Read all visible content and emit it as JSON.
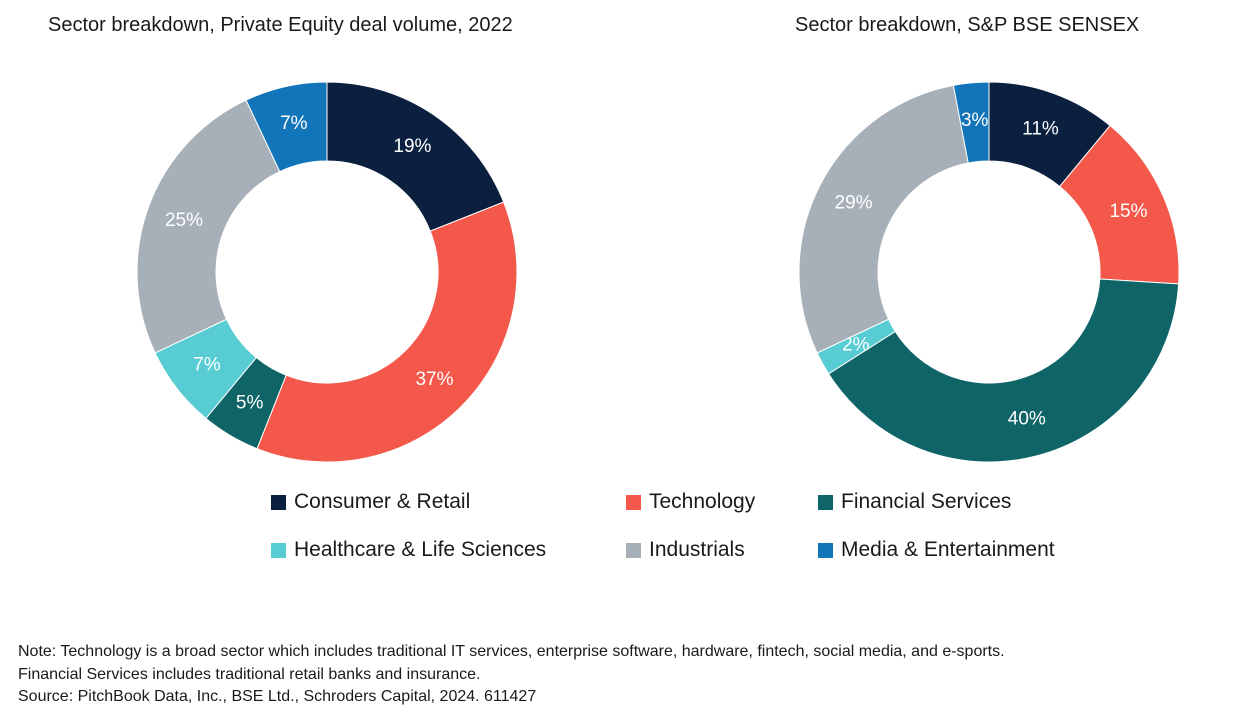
{
  "chart_data": [
    {
      "type": "pie",
      "title": "Sector breakdown, Private Equity deal volume, 2022",
      "slices": [
        {
          "label": "Consumer & Retail",
          "value": 19,
          "display": "19%"
        },
        {
          "label": "Technology",
          "value": 37,
          "display": "37%"
        },
        {
          "label": "Financial Services",
          "value": 5,
          "display": "5%"
        },
        {
          "label": "Healthcare & Life Sciences",
          "value": 7,
          "display": "7%"
        },
        {
          "label": "Industrials",
          "value": 25,
          "display": "25%"
        },
        {
          "label": "Media & Entertainment",
          "value": 7,
          "display": "7%"
        }
      ]
    },
    {
      "type": "pie",
      "title": "Sector breakdown, S&P BSE SENSEX",
      "slices": [
        {
          "label": "Consumer & Retail",
          "value": 11,
          "display": "11%"
        },
        {
          "label": "Technology",
          "value": 15,
          "display": "15%"
        },
        {
          "label": "Financial Services",
          "value": 40,
          "display": "40%"
        },
        {
          "label": "Healthcare & Life Sciences",
          "value": 2,
          "display": "2%"
        },
        {
          "label": "Industrials",
          "value": 29,
          "display": "29%"
        },
        {
          "label": "Media & Entertainment",
          "value": 3,
          "display": "3%"
        }
      ]
    }
  ],
  "legend": [
    {
      "label": "Consumer & Retail",
      "color": "#0b1f3f"
    },
    {
      "label": "Technology",
      "color": "#f4584a"
    },
    {
      "label": "Financial Services",
      "color": "#0f6468"
    },
    {
      "label": "Healthcare & Life Sciences",
      "color": "#57ccd2"
    },
    {
      "label": "Industrials",
      "color": "#a7afb8"
    },
    {
      "label": "Media & Entertainment",
      "color": "#1275ba"
    }
  ],
  "notes": {
    "line1": "Note: Technology is a broad sector which includes traditional IT services, enterprise software, hardware, fintech, social media, and e-sports.",
    "line2": "Financial Services includes traditional retail banks and insurance.",
    "line3": "Source: PitchBook Data, Inc., BSE Ltd., Schroders Capital, 2024. 611427"
  }
}
